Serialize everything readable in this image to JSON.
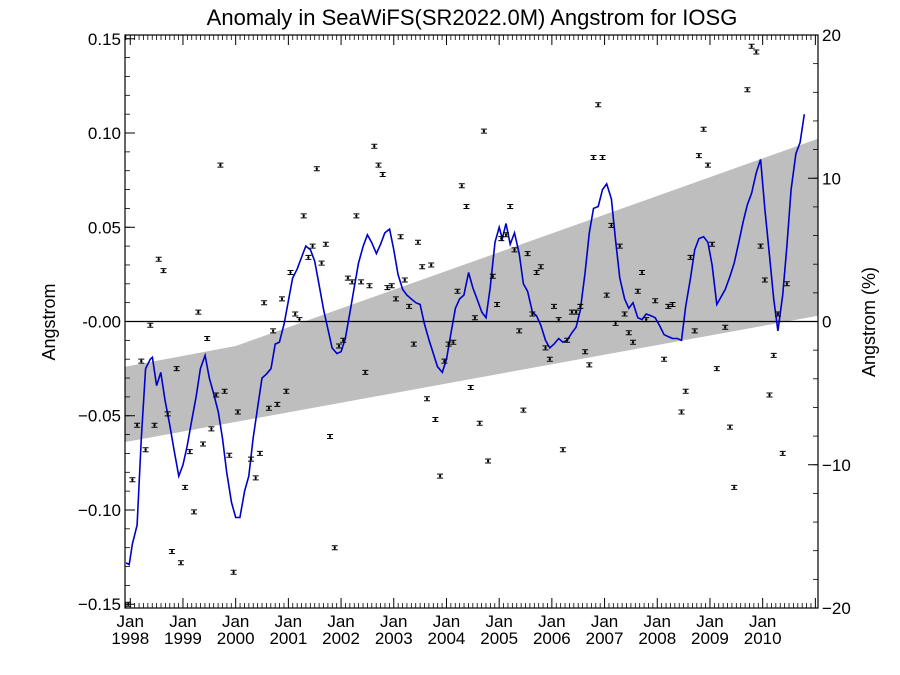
{
  "chart_data": {
    "type": "scatter",
    "title": "Anomaly in SeaWiFS(SR2022.0M) Angstrom for IOSG",
    "ylabel": "Angstrom",
    "y2label": "Angstrom (%)",
    "xlim": [
      1997.9,
      2011.05
    ],
    "ylim": [
      -0.152,
      0.152
    ],
    "y2lim": [
      -20,
      20
    ],
    "yticks": [
      {
        "value": 0.15,
        "label": "0.15"
      },
      {
        "value": 0.1,
        "label": "0.10"
      },
      {
        "value": 0.05,
        "label": "0.05"
      },
      {
        "value": 0.0,
        "label": "-0.00"
      },
      {
        "value": -0.05,
        "label": "−0.05"
      },
      {
        "value": -0.1,
        "label": "−0.10"
      },
      {
        "value": -0.15,
        "label": "−0.15"
      }
    ],
    "y2ticks": [
      {
        "value": 20,
        "label": "20"
      },
      {
        "value": 10,
        "label": "10"
      },
      {
        "value": 0,
        "label": "0"
      },
      {
        "value": -10,
        "label": "−10"
      },
      {
        "value": -20,
        "label": "−20"
      }
    ],
    "xticks": [
      {
        "value": 1998,
        "month": "Jan",
        "year": "1998"
      },
      {
        "value": 1999,
        "month": "Jan",
        "year": "1999"
      },
      {
        "value": 2000,
        "month": "Jan",
        "year": "2000"
      },
      {
        "value": 2001,
        "month": "Jan",
        "year": "2001"
      },
      {
        "value": 2002,
        "month": "Jan",
        "year": "2002"
      },
      {
        "value": 2003,
        "month": "Jan",
        "year": "2003"
      },
      {
        "value": 2004,
        "month": "Jan",
        "year": "2004"
      },
      {
        "value": 2005,
        "month": "Jan",
        "year": "2005"
      },
      {
        "value": 2006,
        "month": "Jan",
        "year": "2006"
      },
      {
        "value": 2007,
        "month": "Jan",
        "year": "2007"
      },
      {
        "value": 2008,
        "month": "Jan",
        "year": "2008"
      },
      {
        "value": 2009,
        "month": "Jan",
        "year": "2009"
      },
      {
        "value": 2010,
        "month": "Jan",
        "year": "2010"
      }
    ],
    "trend_band": {
      "upper": [
        [
          1997.9,
          -0.024
        ],
        [
          2000.0,
          -0.013
        ],
        [
          2011.05,
          0.097
        ]
      ],
      "lower": [
        [
          1997.9,
          -0.064
        ],
        [
          2011.05,
          0.003
        ]
      ]
    },
    "zero_line": 0,
    "colors": {
      "band": "#bebebe",
      "smooth": "#0000cc",
      "points": "#000000"
    },
    "points": [
      [
        1997.96,
        -0.15
      ],
      [
        1998.04,
        -0.084
      ],
      [
        1998.13,
        -0.055
      ],
      [
        1998.21,
        -0.021
      ],
      [
        1998.29,
        -0.068
      ],
      [
        1998.38,
        -0.002
      ],
      [
        1998.46,
        -0.055
      ],
      [
        1998.54,
        0.033
      ],
      [
        1998.63,
        0.027
      ],
      [
        1998.71,
        -0.049
      ],
      [
        1998.79,
        -0.122
      ],
      [
        1998.88,
        -0.025
      ],
      [
        1998.96,
        -0.128
      ],
      [
        1999.04,
        -0.088
      ],
      [
        1999.13,
        -0.069
      ],
      [
        1999.21,
        -0.101
      ],
      [
        1999.29,
        0.005
      ],
      [
        1999.38,
        -0.065
      ],
      [
        1999.46,
        -0.009
      ],
      [
        1999.54,
        -0.057
      ],
      [
        1999.63,
        -0.039
      ],
      [
        1999.71,
        0.083
      ],
      [
        1999.79,
        -0.037
      ],
      [
        1999.88,
        -0.071
      ],
      [
        1999.96,
        -0.133
      ],
      [
        2000.04,
        -0.048
      ],
      [
        2000.29,
        -0.073
      ],
      [
        2000.38,
        -0.083
      ],
      [
        2000.46,
        -0.07
      ],
      [
        2000.54,
        0.01
      ],
      [
        2000.63,
        -0.046
      ],
      [
        2000.71,
        -0.005
      ],
      [
        2000.79,
        -0.044
      ],
      [
        2000.88,
        0.012
      ],
      [
        2000.96,
        -0.037
      ],
      [
        2001.04,
        0.026
      ],
      [
        2001.13,
        0.004
      ],
      [
        2001.21,
        0.001
      ],
      [
        2001.29,
        0.056
      ],
      [
        2001.38,
        0.034
      ],
      [
        2001.46,
        0.04
      ],
      [
        2001.54,
        0.081
      ],
      [
        2001.63,
        0.031
      ],
      [
        2001.71,
        0.041
      ],
      [
        2001.79,
        -0.061
      ],
      [
        2001.88,
        -0.12
      ],
      [
        2001.96,
        -0.013
      ],
      [
        2002.04,
        -0.01
      ],
      [
        2002.13,
        0.023
      ],
      [
        2002.21,
        0.021
      ],
      [
        2002.29,
        0.056
      ],
      [
        2002.38,
        0.021
      ],
      [
        2002.46,
        -0.027
      ],
      [
        2002.54,
        0.019
      ],
      [
        2002.63,
        0.093
      ],
      [
        2002.71,
        0.083
      ],
      [
        2002.79,
        0.078
      ],
      [
        2002.88,
        0.018
      ],
      [
        2002.96,
        0.019
      ],
      [
        2003.04,
        0.012
      ],
      [
        2003.13,
        0.045
      ],
      [
        2003.21,
        0.022
      ],
      [
        2003.29,
        0.008
      ],
      [
        2003.38,
        -0.012
      ],
      [
        2003.46,
        0.042
      ],
      [
        2003.54,
        0.029
      ],
      [
        2003.63,
        -0.041
      ],
      [
        2003.71,
        0.03
      ],
      [
        2003.79,
        -0.052
      ],
      [
        2003.88,
        -0.082
      ],
      [
        2003.96,
        -0.021
      ],
      [
        2004.04,
        -0.012
      ],
      [
        2004.13,
        -0.011
      ],
      [
        2004.21,
        0.016
      ],
      [
        2004.29,
        0.072
      ],
      [
        2004.38,
        0.061
      ],
      [
        2004.46,
        -0.035
      ],
      [
        2004.54,
        0.002
      ],
      [
        2004.63,
        -0.054
      ],
      [
        2004.71,
        0.101
      ],
      [
        2004.79,
        -0.074
      ],
      [
        2004.88,
        0.024
      ],
      [
        2004.96,
        0.009
      ],
      [
        2005.04,
        0.044
      ],
      [
        2005.13,
        0.046
      ],
      [
        2005.21,
        0.061
      ],
      [
        2005.29,
        0.038
      ],
      [
        2005.38,
        -0.005
      ],
      [
        2005.46,
        -0.047
      ],
      [
        2005.54,
        0.036
      ],
      [
        2005.63,
        0.004
      ],
      [
        2005.71,
        0.026
      ],
      [
        2005.79,
        0.029
      ],
      [
        2005.88,
        -0.014
      ],
      [
        2005.96,
        -0.02
      ],
      [
        2006.04,
        0.008
      ],
      [
        2006.13,
        0.001
      ],
      [
        2006.21,
        -0.068
      ],
      [
        2006.29,
        -0.01
      ],
      [
        2006.38,
        0.005
      ],
      [
        2006.46,
        0.005
      ],
      [
        2006.54,
        0.008
      ],
      [
        2006.63,
        -0.016
      ],
      [
        2006.71,
        -0.023
      ],
      [
        2006.79,
        0.087
      ],
      [
        2006.88,
        0.115
      ],
      [
        2006.96,
        0.087
      ],
      [
        2007.04,
        0.014
      ],
      [
        2007.13,
        0.051
      ],
      [
        2007.21,
        -0.001
      ],
      [
        2007.29,
        0.04
      ],
      [
        2007.38,
        0.004
      ],
      [
        2007.46,
        -0.006
      ],
      [
        2007.54,
        -0.011
      ],
      [
        2007.63,
        0.016
      ],
      [
        2007.71,
        0.026
      ],
      [
        2007.79,
        0.001
      ],
      [
        2007.96,
        0.011
      ],
      [
        2008.13,
        -0.02
      ],
      [
        2008.21,
        0.008
      ],
      [
        2008.29,
        0.009
      ],
      [
        2008.46,
        -0.048
      ],
      [
        2008.54,
        -0.037
      ],
      [
        2008.63,
        0.034
      ],
      [
        2008.71,
        -0.005
      ],
      [
        2008.79,
        0.088
      ],
      [
        2008.88,
        0.102
      ],
      [
        2008.96,
        0.083
      ],
      [
        2009.04,
        0.041
      ],
      [
        2009.13,
        -0.025
      ],
      [
        2009.29,
        -0.003
      ],
      [
        2009.38,
        -0.056
      ],
      [
        2009.46,
        -0.088
      ],
      [
        2009.71,
        0.123
      ],
      [
        2009.79,
        0.146
      ],
      [
        2009.88,
        0.143
      ],
      [
        2009.96,
        0.04
      ],
      [
        2010.04,
        0.022
      ],
      [
        2010.13,
        -0.039
      ],
      [
        2010.21,
        -0.018
      ],
      [
        2010.29,
        0.004
      ],
      [
        2010.38,
        -0.07
      ],
      [
        2010.46,
        0.02
      ]
    ],
    "smooth": [
      [
        1997.92,
        -0.128
      ],
      [
        1997.98,
        -0.129
      ],
      [
        1998.04,
        -0.118
      ],
      [
        1998.13,
        -0.108
      ],
      [
        1998.21,
        -0.062
      ],
      [
        1998.29,
        -0.025
      ],
      [
        1998.38,
        -0.02
      ],
      [
        1998.42,
        -0.019
      ],
      [
        1998.5,
        -0.034
      ],
      [
        1998.58,
        -0.027
      ],
      [
        1998.66,
        -0.042
      ],
      [
        1998.75,
        -0.055
      ],
      [
        1998.83,
        -0.068
      ],
      [
        1998.92,
        -0.082
      ],
      [
        1999.0,
        -0.076
      ],
      [
        1999.08,
        -0.066
      ],
      [
        1999.17,
        -0.052
      ],
      [
        1999.25,
        -0.04
      ],
      [
        1999.33,
        -0.025
      ],
      [
        1999.42,
        -0.018
      ],
      [
        1999.5,
        -0.03
      ],
      [
        1999.58,
        -0.038
      ],
      [
        1999.67,
        -0.048
      ],
      [
        1999.75,
        -0.062
      ],
      [
        1999.83,
        -0.08
      ],
      [
        1999.92,
        -0.096
      ],
      [
        2000.0,
        -0.104
      ],
      [
        2000.08,
        -0.104
      ],
      [
        2000.17,
        -0.09
      ],
      [
        2000.25,
        -0.082
      ],
      [
        2000.33,
        -0.062
      ],
      [
        2000.42,
        -0.045
      ],
      [
        2000.5,
        -0.03
      ],
      [
        2000.58,
        -0.028
      ],
      [
        2000.67,
        -0.025
      ],
      [
        2000.75,
        -0.012
      ],
      [
        2000.83,
        -0.011
      ],
      [
        2000.92,
        -0.001
      ],
      [
        2001.0,
        0.011
      ],
      [
        2001.08,
        0.023
      ],
      [
        2001.17,
        0.028
      ],
      [
        2001.25,
        0.034
      ],
      [
        2001.33,
        0.04
      ],
      [
        2001.42,
        0.038
      ],
      [
        2001.5,
        0.032
      ],
      [
        2001.58,
        0.02
      ],
      [
        2001.67,
        0.006
      ],
      [
        2001.75,
        -0.004
      ],
      [
        2001.83,
        -0.014
      ],
      [
        2001.92,
        -0.017
      ],
      [
        2002.0,
        -0.016
      ],
      [
        2002.08,
        -0.009
      ],
      [
        2002.17,
        0.005
      ],
      [
        2002.25,
        0.018
      ],
      [
        2002.33,
        0.031
      ],
      [
        2002.42,
        0.04
      ],
      [
        2002.5,
        0.046
      ],
      [
        2002.58,
        0.042
      ],
      [
        2002.67,
        0.036
      ],
      [
        2002.75,
        0.041
      ],
      [
        2002.83,
        0.047
      ],
      [
        2002.92,
        0.049
      ],
      [
        2003.0,
        0.038
      ],
      [
        2003.08,
        0.025
      ],
      [
        2003.17,
        0.017
      ],
      [
        2003.25,
        0.014
      ],
      [
        2003.33,
        0.012
      ],
      [
        2003.42,
        0.01
      ],
      [
        2003.5,
        0.009
      ],
      [
        2003.58,
        -0.001
      ],
      [
        2003.67,
        -0.01
      ],
      [
        2003.75,
        -0.017
      ],
      [
        2003.83,
        -0.024
      ],
      [
        2003.92,
        -0.027
      ],
      [
        2004.0,
        -0.02
      ],
      [
        2004.08,
        -0.007
      ],
      [
        2004.17,
        0.007
      ],
      [
        2004.25,
        0.012
      ],
      [
        2004.33,
        0.014
      ],
      [
        2004.42,
        0.026
      ],
      [
        2004.5,
        0.018
      ],
      [
        2004.58,
        0.012
      ],
      [
        2004.67,
        0.005
      ],
      [
        2004.75,
        0.002
      ],
      [
        2004.83,
        0.018
      ],
      [
        2004.92,
        0.042
      ],
      [
        2005.0,
        0.05
      ],
      [
        2005.06,
        0.044
      ],
      [
        2005.13,
        0.052
      ],
      [
        2005.21,
        0.041
      ],
      [
        2005.29,
        0.047
      ],
      [
        2005.38,
        0.036
      ],
      [
        2005.46,
        0.02
      ],
      [
        2005.54,
        0.016
      ],
      [
        2005.63,
        0.005
      ],
      [
        2005.71,
        0.003
      ],
      [
        2005.79,
        -0.002
      ],
      [
        2005.88,
        -0.01
      ],
      [
        2005.96,
        -0.014
      ],
      [
        2006.04,
        -0.012
      ],
      [
        2006.13,
        -0.009
      ],
      [
        2006.21,
        -0.011
      ],
      [
        2006.29,
        -0.01
      ],
      [
        2006.38,
        -0.006
      ],
      [
        2006.46,
        -0.003
      ],
      [
        2006.54,
        0.006
      ],
      [
        2006.63,
        0.026
      ],
      [
        2006.71,
        0.047
      ],
      [
        2006.79,
        0.06
      ],
      [
        2006.88,
        0.061
      ],
      [
        2006.96,
        0.07
      ],
      [
        2007.04,
        0.073
      ],
      [
        2007.13,
        0.065
      ],
      [
        2007.21,
        0.043
      ],
      [
        2007.29,
        0.023
      ],
      [
        2007.38,
        0.012
      ],
      [
        2007.46,
        0.007
      ],
      [
        2007.54,
        0.01
      ],
      [
        2007.63,
        0.002
      ],
      [
        2007.71,
        0.001
      ],
      [
        2007.79,
        0.004
      ],
      [
        2007.88,
        0.003
      ],
      [
        2007.96,
        0.002
      ],
      [
        2008.04,
        -0.002
      ],
      [
        2008.13,
        -0.007
      ],
      [
        2008.21,
        -0.008
      ],
      [
        2008.29,
        -0.009
      ],
      [
        2008.38,
        -0.009
      ],
      [
        2008.46,
        -0.01
      ],
      [
        2008.54,
        0.008
      ],
      [
        2008.63,
        0.023
      ],
      [
        2008.71,
        0.038
      ],
      [
        2008.79,
        0.044
      ],
      [
        2008.88,
        0.045
      ],
      [
        2008.96,
        0.042
      ],
      [
        2009.04,
        0.03
      ],
      [
        2009.13,
        0.009
      ],
      [
        2009.21,
        0.013
      ],
      [
        2009.29,
        0.017
      ],
      [
        2009.38,
        0.024
      ],
      [
        2009.46,
        0.031
      ],
      [
        2009.54,
        0.041
      ],
      [
        2009.63,
        0.053
      ],
      [
        2009.71,
        0.062
      ],
      [
        2009.79,
        0.068
      ],
      [
        2009.88,
        0.079
      ],
      [
        2009.96,
        0.086
      ],
      [
        2010.04,
        0.06
      ],
      [
        2010.13,
        0.035
      ],
      [
        2010.21,
        0.012
      ],
      [
        2010.29,
        -0.005
      ],
      [
        2010.38,
        0.014
      ],
      [
        2010.46,
        0.04
      ],
      [
        2010.54,
        0.07
      ],
      [
        2010.63,
        0.089
      ],
      [
        2010.71,
        0.095
      ],
      [
        2010.79,
        0.11
      ]
    ]
  }
}
